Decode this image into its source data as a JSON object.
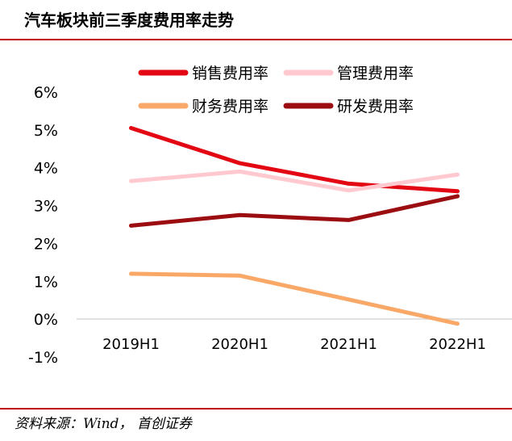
{
  "header": {
    "title": "汽车板块前三季度费用率走势"
  },
  "footer": {
    "source": "资料来源：Wind， 首创证券"
  },
  "colors": {
    "accent_rule": "#c00000"
  },
  "chart_data": {
    "type": "line",
    "title": "汽车板块前三季度费用率走势",
    "xlabel": "",
    "ylabel": "",
    "categories": [
      "2019H1",
      "2020H1",
      "2021H1",
      "2022H1"
    ],
    "ylim": [
      -1,
      6
    ],
    "yticks": [
      -1,
      0,
      1,
      2,
      3,
      4,
      5,
      6
    ],
    "ytick_labels": [
      "-1%",
      "0%",
      "1%",
      "2%",
      "3%",
      "4%",
      "5%",
      "6%"
    ],
    "grid": false,
    "legend_position": "top",
    "series": [
      {
        "name": "销售费用率",
        "color": "#e30613",
        "values": [
          5.05,
          4.12,
          3.58,
          3.38
        ]
      },
      {
        "name": "管理费用率",
        "color": "#ffc9cf",
        "values": [
          3.65,
          3.9,
          3.4,
          3.82
        ]
      },
      {
        "name": "财务费用率",
        "color": "#f9a868",
        "values": [
          1.2,
          1.15,
          0.52,
          -0.12
        ]
      },
      {
        "name": "研发费用率",
        "color": "#9b0d10",
        "values": [
          2.47,
          2.75,
          2.62,
          3.25
        ]
      }
    ]
  }
}
